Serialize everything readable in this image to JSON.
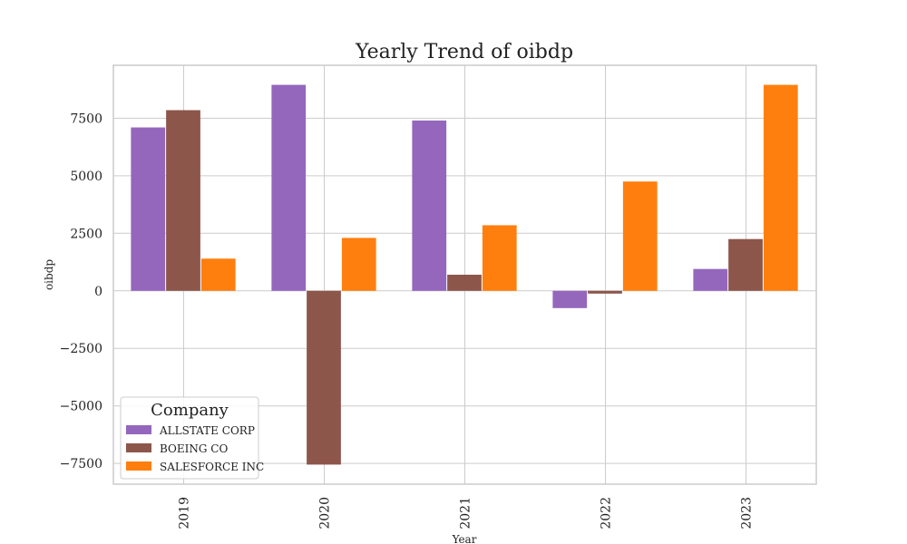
{
  "chart_data": {
    "type": "bar",
    "title": "Yearly Trend of oibdp",
    "xlabel": "Year",
    "ylabel": "oibdp",
    "categories": [
      "2019",
      "2020",
      "2021",
      "2022",
      "2023"
    ],
    "series": [
      {
        "name": "ALLSTATE CORP",
        "color": "#9467bd",
        "values": [
          7100,
          8950,
          7400,
          -750,
          950
        ]
      },
      {
        "name": "BOEING CO",
        "color": "#8c564b",
        "values": [
          7850,
          -7550,
          700,
          -120,
          2250
        ]
      },
      {
        "name": "SALESFORCE INC",
        "color": "#ff7f0e",
        "values": [
          1400,
          2300,
          2850,
          4750,
          8950
        ]
      }
    ],
    "ylim": [
      -8400,
      9800
    ],
    "yticks": [
      -7500,
      -5000,
      -2500,
      0,
      2500,
      5000,
      7500
    ],
    "ytick_labels": [
      "−7500",
      "−5000",
      "−2500",
      "0",
      "2500",
      "5000",
      "7500"
    ],
    "grid": true,
    "legend": {
      "title": "Company",
      "placement": "lower-left"
    }
  }
}
